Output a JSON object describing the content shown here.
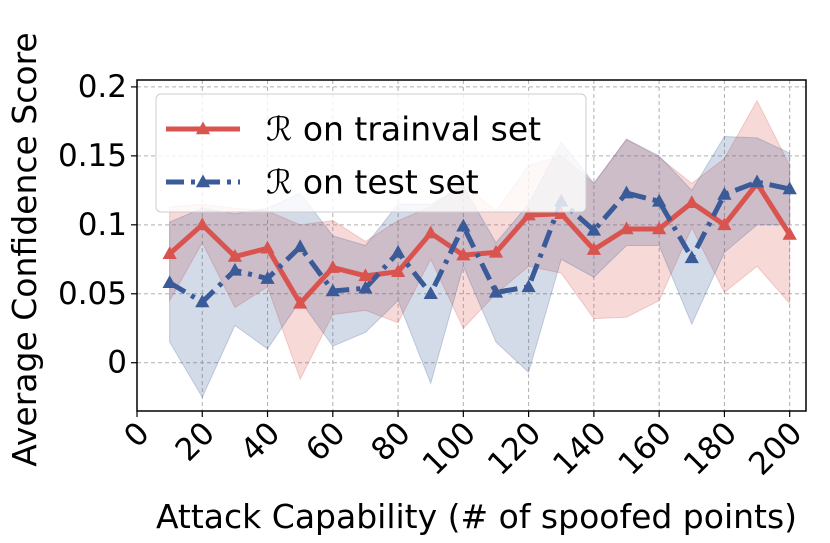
{
  "chart_data": {
    "type": "line",
    "xlabel": "Attack Capability (# of spoofed points)",
    "ylabel": "Average Confidence Score",
    "xlim": [
      0,
      205
    ],
    "ylim": [
      -0.035,
      0.205
    ],
    "x_ticks": [
      0,
      20,
      40,
      60,
      80,
      100,
      120,
      140,
      160,
      180,
      200
    ],
    "y_ticks": [
      0,
      0.05,
      0.1,
      0.15,
      0.2
    ],
    "y_tick_labels": [
      "0",
      "0.05",
      "0.1",
      "0.15",
      "0.2"
    ],
    "grid": true,
    "legend_position": "upper-left",
    "x": [
      10,
      20,
      30,
      40,
      50,
      60,
      70,
      80,
      90,
      100,
      110,
      120,
      130,
      140,
      150,
      160,
      170,
      180,
      190,
      200
    ],
    "series": [
      {
        "name": "ℛ on trainval set",
        "color": "#d9534f",
        "line_style": "solid",
        "marker": "triangle",
        "values": [
          0.079,
          0.1,
          0.077,
          0.083,
          0.043,
          0.069,
          0.063,
          0.066,
          0.094,
          0.078,
          0.08,
          0.107,
          0.108,
          0.082,
          0.097,
          0.097,
          0.116,
          0.1,
          0.13,
          0.093
        ],
        "band_lower": [
          0.045,
          0.087,
          0.04,
          0.055,
          -0.012,
          0.035,
          0.038,
          0.029,
          0.075,
          0.025,
          0.05,
          0.07,
          0.065,
          0.032,
          0.033,
          0.045,
          0.098,
          0.051,
          0.07,
          0.043
        ],
        "band_upper": [
          0.113,
          0.115,
          0.112,
          0.11,
          0.1,
          0.103,
          0.088,
          0.103,
          0.113,
          0.13,
          0.11,
          0.143,
          0.15,
          0.13,
          0.162,
          0.149,
          0.13,
          0.148,
          0.19,
          0.143
        ]
      },
      {
        "name": "ℛ on test set",
        "color": "#3a5a98",
        "line_style": "dashdot",
        "marker": "triangle",
        "values": [
          0.058,
          0.044,
          0.067,
          0.061,
          0.084,
          0.052,
          0.054,
          0.08,
          0.05,
          0.099,
          0.051,
          0.055,
          0.117,
          0.096,
          0.123,
          0.117,
          0.076,
          0.122,
          0.131,
          0.126
        ],
        "band_lower": [
          0.015,
          -0.025,
          0.027,
          0.01,
          0.045,
          0.012,
          0.022,
          0.045,
          -0.015,
          0.07,
          0.015,
          -0.007,
          0.075,
          0.062,
          0.085,
          0.085,
          0.028,
          0.08,
          0.1,
          0.1
        ],
        "band_upper": [
          0.102,
          0.112,
          0.108,
          0.112,
          0.123,
          0.092,
          0.085,
          0.115,
          0.115,
          0.128,
          0.087,
          0.115,
          0.16,
          0.13,
          0.162,
          0.15,
          0.125,
          0.164,
          0.163,
          0.152
        ]
      }
    ]
  }
}
